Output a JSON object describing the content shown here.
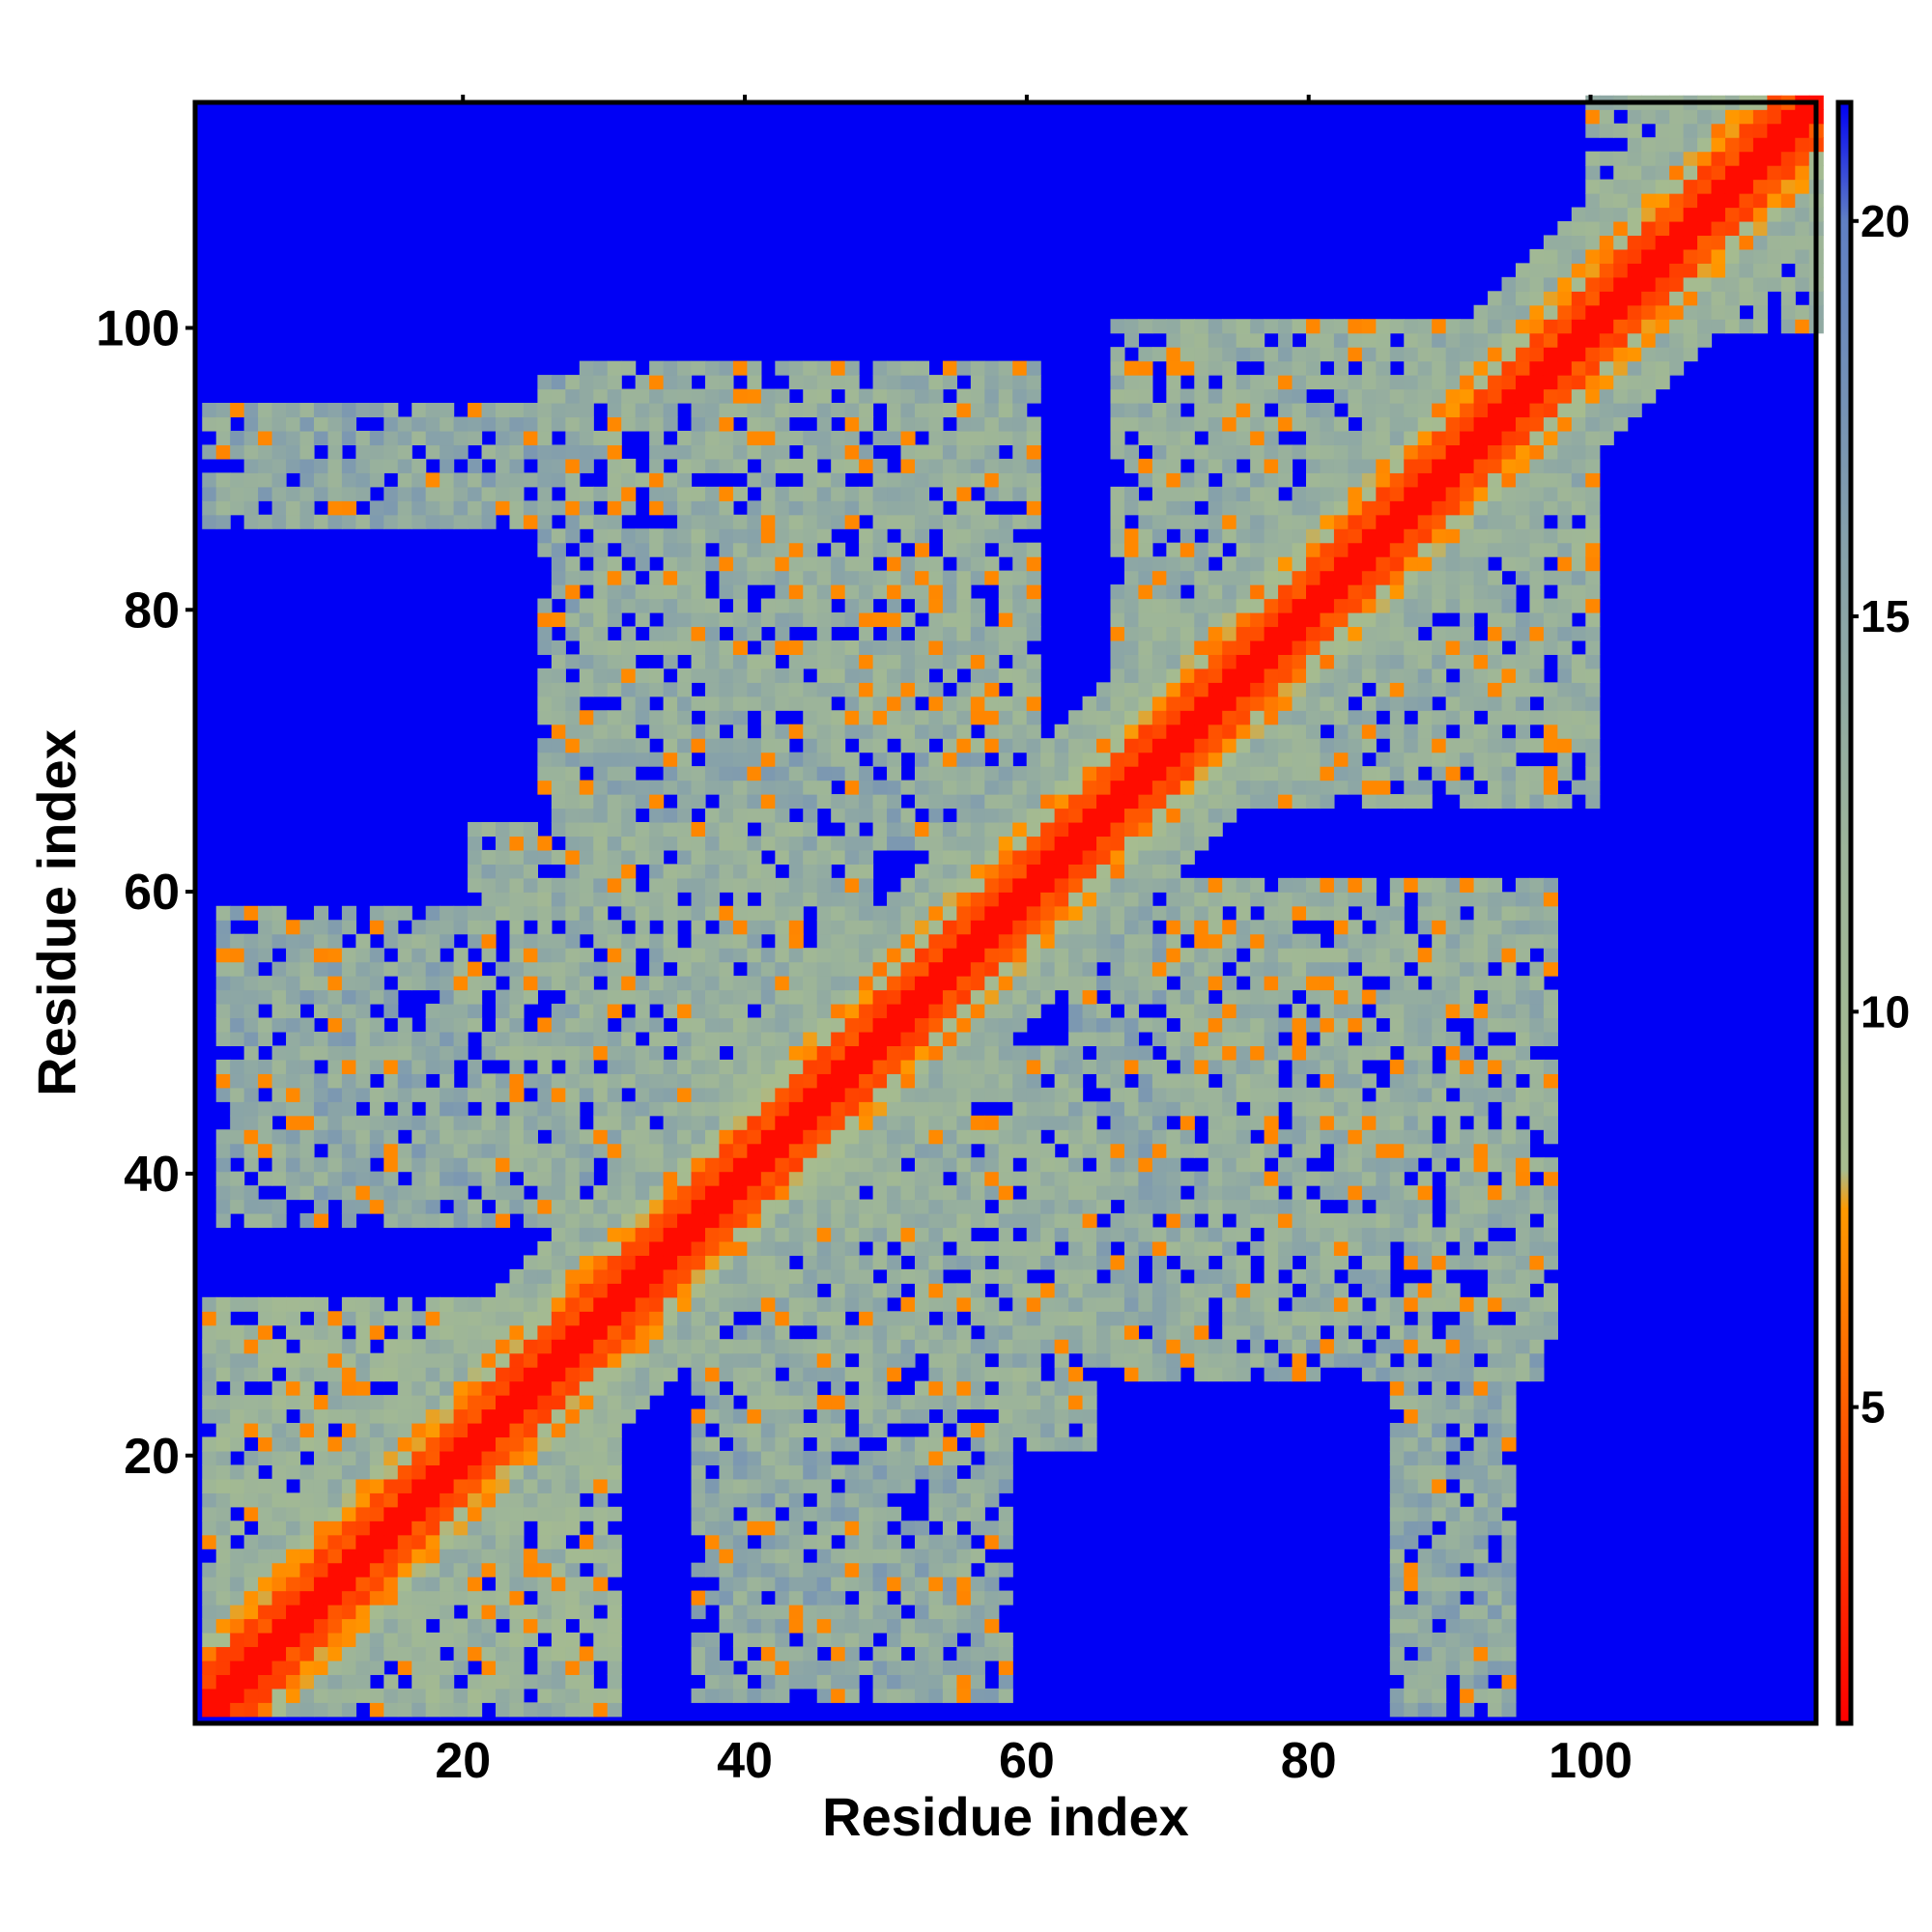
{
  "chart_data": {
    "type": "heatmap",
    "title": "",
    "xlabel": "Residue index",
    "ylabel": "Residue index",
    "n_residues": 116,
    "xlim": [
      1,
      116
    ],
    "ylim": [
      1,
      116
    ],
    "x_ticks": [
      20,
      40,
      60,
      80,
      100
    ],
    "y_ticks": [
      20,
      40,
      60,
      80,
      100
    ],
    "colorbar": {
      "ticks": [
        5,
        10,
        15,
        20
      ],
      "range": [
        1,
        21.5
      ],
      "colors": {
        "near": "#ff0000",
        "mid": "#ff9900",
        "contact": "#a6bc8f",
        "medium": "#7f9ab4",
        "far": "#0000f5"
      },
      "stops": [
        {
          "value": 1,
          "color": "#ff0000"
        },
        {
          "value": 7.5,
          "color": "#ff9900"
        },
        {
          "value": 8,
          "color": "#a6bc8f"
        },
        {
          "value": 12,
          "color": "#9cb49a"
        },
        {
          "value": 16,
          "color": "#85a0ab"
        },
        {
          "value": 20,
          "color": "#5f7fc4"
        },
        {
          "value": 21.5,
          "color": "#0000f5"
        }
      ]
    },
    "description_of_values": "Symmetric residue-residue distance map: values ~1-4 along the main diagonal (red), ~5-8 orange for near contacts, ~9-19 green/gray-blue for medium distances, >20 blue elsewhere.",
    "off_diagonal_contact_blocks": [
      {
        "x_range": [
          5,
          30
        ],
        "y_range": [
          1,
          26
        ],
        "level": 11
      },
      {
        "x_range": [
          20,
          48
        ],
        "y_range": [
          40,
          64
        ],
        "level": 12
      },
      {
        "x_range": [
          1,
          25
        ],
        "y_range": [
          86,
          94
        ],
        "level": 13
      },
      {
        "x_range": [
          28,
          60
        ],
        "y_range": [
          70,
          97
        ],
        "level": 12
      },
      {
        "x_range": [
          36,
          58
        ],
        "y_range": [
          2,
          36
        ],
        "level": 13
      },
      {
        "x_range": [
          63,
          96
        ],
        "y_range": [
          25,
          58
        ],
        "level": 13
      },
      {
        "x_range": [
          86,
          94
        ],
        "y_range": [
          1,
          50
        ],
        "level": 14
      },
      {
        "x_range": [
          67,
          100
        ],
        "y_range": [
          66,
          100
        ],
        "level": 12
      },
      {
        "x_range": [
          60,
          80
        ],
        "y_range": [
          36,
          44
        ],
        "level": 9
      },
      {
        "x_range": [
          35,
          42
        ],
        "y_range": [
          66,
          76
        ],
        "level": 8
      },
      {
        "x_range": [
          100,
          116
        ],
        "y_range": [
          100,
          116
        ],
        "level": 11
      }
    ]
  }
}
